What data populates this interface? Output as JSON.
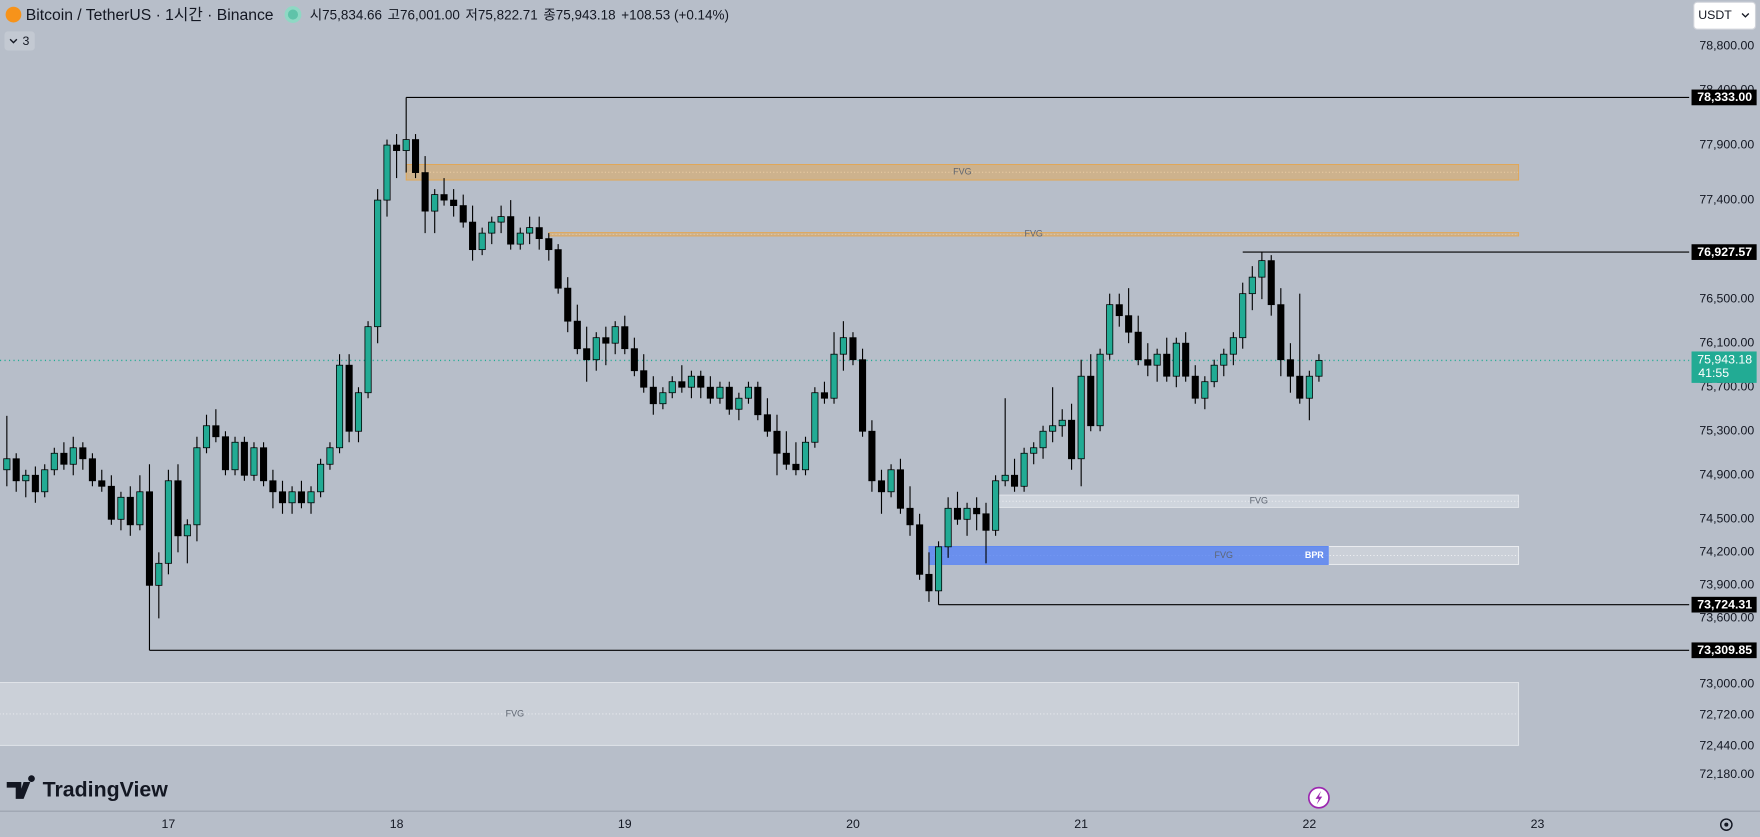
{
  "header": {
    "symbol": "Bitcoin / TetherUS · 1시간 · Binance",
    "ohlc": [
      "시75,834.66",
      "고76,001.00",
      "저75,822.71",
      "종75,943.18"
    ],
    "change": "+108.53 (+0.14%)",
    "indicators": "3",
    "currency": "USDT",
    "brand": "TradingView"
  },
  "chart_data": {
    "type": "candlestick",
    "x": [
      16.292,
      16.333,
      16.375,
      16.417,
      16.458,
      16.5,
      16.542,
      16.583,
      16.625,
      16.667,
      16.708,
      16.75,
      16.792,
      16.833,
      16.875,
      16.917,
      16.958,
      17,
      17.042,
      17.083,
      17.125,
      17.167,
      17.208,
      17.25,
      17.292,
      17.333,
      17.375,
      17.417,
      17.458,
      17.5,
      17.542,
      17.583,
      17.625,
      17.667,
      17.708,
      17.75,
      17.792,
      17.833,
      17.875,
      17.917,
      17.958,
      18,
      18.042,
      18.083,
      18.125,
      18.167,
      18.208,
      18.25,
      18.292,
      18.333,
      18.375,
      18.417,
      18.458,
      18.5,
      18.542,
      18.583,
      18.625,
      18.667,
      18.708,
      18.75,
      18.792,
      18.833,
      18.875,
      18.917,
      18.958,
      19,
      19.042,
      19.083,
      19.125,
      19.167,
      19.208,
      19.25,
      19.292,
      19.333,
      19.375,
      19.417,
      19.458,
      19.5,
      19.542,
      19.583,
      19.625,
      19.667,
      19.708,
      19.75,
      19.792,
      19.833,
      19.875,
      19.917,
      19.958,
      20,
      20.042,
      20.083,
      20.125,
      20.167,
      20.208,
      20.25,
      20.292,
      20.333,
      20.375,
      20.417,
      20.458,
      20.5,
      20.542,
      20.583,
      20.625,
      20.667,
      20.708,
      20.75,
      20.792,
      20.833,
      20.875,
      20.917,
      20.958,
      21,
      21.042,
      21.083,
      21.125,
      21.167,
      21.208,
      21.25,
      21.292,
      21.333,
      21.375,
      21.417,
      21.458,
      21.5,
      21.542,
      21.583,
      21.625,
      21.667,
      21.708,
      21.75,
      21.792,
      21.833,
      21.875,
      21.917,
      21.958,
      22,
      22.042
    ],
    "open": [
      74950,
      75050,
      74850,
      74900,
      74750,
      74950,
      75100,
      75000,
      75150,
      75050,
      74850,
      74800,
      74500,
      74700,
      74450,
      74750,
      73900,
      74100,
      74850,
      74350,
      74450,
      75150,
      75350,
      75250,
      74950,
      75200,
      74900,
      75150,
      74850,
      74750,
      74650,
      74750,
      74650,
      74750,
      75000,
      75150,
      75900,
      75300,
      75650,
      76250,
      77400,
      77900,
      77850,
      77950,
      77650,
      77300,
      77450,
      77400,
      77350,
      77200,
      76950,
      77100,
      77200,
      77250,
      77000,
      77100,
      77150,
      77050,
      76950,
      76600,
      76300,
      76050,
      75950,
      76150,
      76100,
      76250,
      76050,
      75850,
      75700,
      75550,
      75650,
      75750,
      75700,
      75800,
      75700,
      75600,
      75700,
      75500,
      75600,
      75700,
      75450,
      75300,
      75100,
      75000,
      74950,
      75200,
      75650,
      75600,
      76000,
      76150,
      75950,
      75300,
      74850,
      74750,
      74950,
      74600,
      74450,
      74000,
      73850,
      74250,
      74600,
      74500,
      74600,
      74550,
      74400,
      74850,
      74900,
      74800,
      75100,
      75150,
      75300,
      75350,
      75400,
      75050,
      75800,
      75350,
      76000,
      76450,
      76350,
      76200,
      75950,
      75900,
      76000,
      75800,
      76100,
      75800,
      75600,
      75750,
      75900,
      76000,
      76150,
      76550,
      76700,
      76850,
      76450,
      75950,
      75800,
      75600,
      75800
    ],
    "high": [
      75440,
      75100,
      74950,
      74980,
      75000,
      75150,
      75200,
      75250,
      75200,
      75100,
      74950,
      74900,
      74750,
      74800,
      74900,
      75000,
      74200,
      74950,
      75000,
      74500,
      75250,
      75450,
      75500,
      75300,
      75250,
      75250,
      75200,
      75200,
      74950,
      74850,
      74800,
      74850,
      74800,
      75050,
      75200,
      76000,
      76000,
      75700,
      76300,
      77500,
      77950,
      78000,
      78333,
      78000,
      77800,
      77500,
      77600,
      77500,
      77450,
      77350,
      77150,
      77250,
      77350,
      77400,
      77150,
      77250,
      77250,
      77100,
      77000,
      76700,
      76450,
      76250,
      76200,
      76250,
      76300,
      76350,
      76150,
      76000,
      75800,
      75700,
      75800,
      75900,
      75850,
      75850,
      75800,
      75750,
      75750,
      75650,
      75750,
      75750,
      75600,
      75450,
      75300,
      75200,
      75250,
      75700,
      75750,
      76200,
      76300,
      76200,
      76050,
      75400,
      74950,
      75000,
      75050,
      74800,
      74550,
      74200,
      74300,
      74700,
      74750,
      74650,
      74700,
      74650,
      74900,
      75600,
      75050,
      75150,
      75200,
      75350,
      75700,
      75500,
      75550,
      75950,
      76000,
      76050,
      76550,
      76550,
      76600,
      76350,
      76100,
      76050,
      76150,
      76150,
      76200,
      75900,
      75800,
      75950,
      76050,
      76200,
      76650,
      76800,
      76927.57,
      76900,
      76600,
      76100,
      76550,
      75850,
      76000
    ],
    "low": [
      74800,
      74750,
      74700,
      74650,
      74700,
      74900,
      74950,
      74900,
      74950,
      74800,
      74750,
      74450,
      74400,
      74350,
      74400,
      73309.85,
      73600,
      74000,
      74200,
      74100,
      74300,
      75100,
      75200,
      74900,
      74900,
      74850,
      74850,
      74800,
      74600,
      74550,
      74550,
      74600,
      74550,
      74700,
      74950,
      75100,
      75200,
      75200,
      75600,
      76100,
      77250,
      77600,
      77650,
      77600,
      77100,
      77100,
      77350,
      77250,
      77150,
      76850,
      76900,
      77000,
      77100,
      76950,
      76950,
      77000,
      76950,
      76850,
      76550,
      76200,
      76000,
      75750,
      75850,
      75900,
      76000,
      76000,
      75800,
      75650,
      75450,
      75500,
      75600,
      75650,
      75600,
      75600,
      75550,
      75550,
      75450,
      75400,
      75550,
      75400,
      75250,
      74900,
      74950,
      74900,
      74900,
      75150,
      75550,
      75550,
      75850,
      75900,
      75250,
      74750,
      74550,
      74700,
      74550,
      74350,
      73950,
      73750,
      73724.31,
      74150,
      74450,
      74350,
      74400,
      74100,
      74350,
      74800,
      74750,
      74750,
      75000,
      75050,
      75200,
      75250,
      74950,
      74800,
      75300,
      75300,
      75950,
      76250,
      76100,
      75900,
      75800,
      75750,
      75750,
      75700,
      75750,
      75550,
      75500,
      75700,
      75800,
      75900,
      76050,
      76400,
      76500,
      76350,
      75800,
      75650,
      75550,
      75400,
      75750
    ],
    "close": [
      75050,
      74850,
      74900,
      74750,
      74950,
      75100,
      75000,
      75150,
      75050,
      74850,
      74800,
      74500,
      74700,
      74450,
      74750,
      73900,
      74100,
      74850,
      74350,
      74450,
      75150,
      75350,
      75250,
      74950,
      75200,
      74900,
      75150,
      74850,
      74750,
      74650,
      74750,
      74650,
      74750,
      75000,
      75150,
      75900,
      75300,
      75650,
      76250,
      77400,
      77900,
      77850,
      77950,
      77650,
      77300,
      77450,
      77400,
      77350,
      77200,
      76950,
      77100,
      77200,
      77250,
      77000,
      77100,
      77150,
      77050,
      76950,
      76600,
      76300,
      76050,
      75950,
      76150,
      76100,
      76250,
      76050,
      75850,
      75700,
      75550,
      75650,
      75750,
      75700,
      75800,
      75700,
      75600,
      75700,
      75500,
      75600,
      75700,
      75450,
      75300,
      75100,
      75000,
      74950,
      75200,
      75650,
      75600,
      76000,
      76150,
      75950,
      75300,
      74850,
      74750,
      74950,
      74600,
      74450,
      74000,
      73850,
      74250,
      74600,
      74500,
      74600,
      74550,
      74400,
      74850,
      74900,
      74800,
      75100,
      75150,
      75300,
      75350,
      75400,
      75050,
      75800,
      75350,
      76000,
      76450,
      76350,
      76200,
      75950,
      75900,
      76000,
      75800,
      76100,
      75800,
      75600,
      75750,
      75900,
      76000,
      76150,
      76550,
      76700,
      76850,
      76450,
      75950,
      75800,
      75600,
      75800,
      75943.18
    ],
    "up_color": "#22ab94",
    "down_color": "#000000",
    "xlim": [
      16.262,
      23.665
    ],
    "xticks": [
      17,
      18,
      19,
      20,
      21,
      22,
      23
    ],
    "ylim": [
      71848,
      79218
    ],
    "yticks": [
      {
        "value": 78800,
        "label": "78,800.00"
      },
      {
        "value": 78400,
        "label": "78,400.00"
      },
      {
        "value": 77900,
        "label": "77,900.00"
      },
      {
        "value": 77400,
        "label": "77,400.00"
      },
      {
        "value": 76500,
        "label": "76,500.00"
      },
      {
        "value": 76100,
        "label": "76,100.00"
      },
      {
        "value": 75700,
        "label": "75,700.00"
      },
      {
        "value": 75300,
        "label": "75,300.00"
      },
      {
        "value": 74900,
        "label": "74,900.00"
      },
      {
        "value": 74500,
        "label": "74,500.00"
      },
      {
        "value": 74200,
        "label": "74,200.00"
      },
      {
        "value": 73900,
        "label": "73,900.00"
      },
      {
        "value": 73600,
        "label": "73,600.00"
      },
      {
        "value": 73000,
        "label": "73,000.00"
      },
      {
        "value": 72720,
        "label": "72,720.00"
      },
      {
        "value": 72440,
        "label": "72,440.00"
      },
      {
        "value": 72180,
        "label": "72,180.00"
      }
    ],
    "grid": false,
    "levels": [
      {
        "value": 78333,
        "label": "78,333.00",
        "x": 18.042
      },
      {
        "value": 76927.57,
        "label": "76,927.57",
        "x": 21.708
      },
      {
        "value": 73724.31,
        "label": "73,724.31",
        "x": 20.375
      },
      {
        "value": 73309.85,
        "label": "73,309.85",
        "x": 16.917
      }
    ],
    "last_price": {
      "value": 75943.18,
      "label": "75,943.18",
      "countdown": "41:55",
      "color": "#22ab94"
    },
    "zones": [
      {
        "label": "FVG",
        "top": 77724,
        "bottom": 77582,
        "x0": 18.042,
        "x1": 22.917,
        "color": "#e3a652",
        "opacity": 0.5
      },
      {
        "label": "FVG",
        "top": 77105,
        "bottom": 77074,
        "x0": 18.667,
        "x1": 22.917,
        "color": "#e3a652",
        "opacity": 0.5
      },
      {
        "label": "FVG",
        "top": 74720,
        "bottom": 74608,
        "x0": 20.64,
        "x1": 22.917,
        "color": "#e4e7ec",
        "opacity": 0.55
      },
      {
        "label": "FVG",
        "tag": "BPR",
        "top": 74253,
        "bottom": 74090,
        "x0": 20.333,
        "x1": 22.083,
        "extend_to": 22.917,
        "color": "#5d87f3",
        "opacity": 0.85
      },
      {
        "label": "FVG",
        "top": 73017,
        "bottom": 72446,
        "x0": 14.12,
        "x1": 22.917,
        "color": "#e4e7ec",
        "opacity": 0.45
      }
    ]
  }
}
